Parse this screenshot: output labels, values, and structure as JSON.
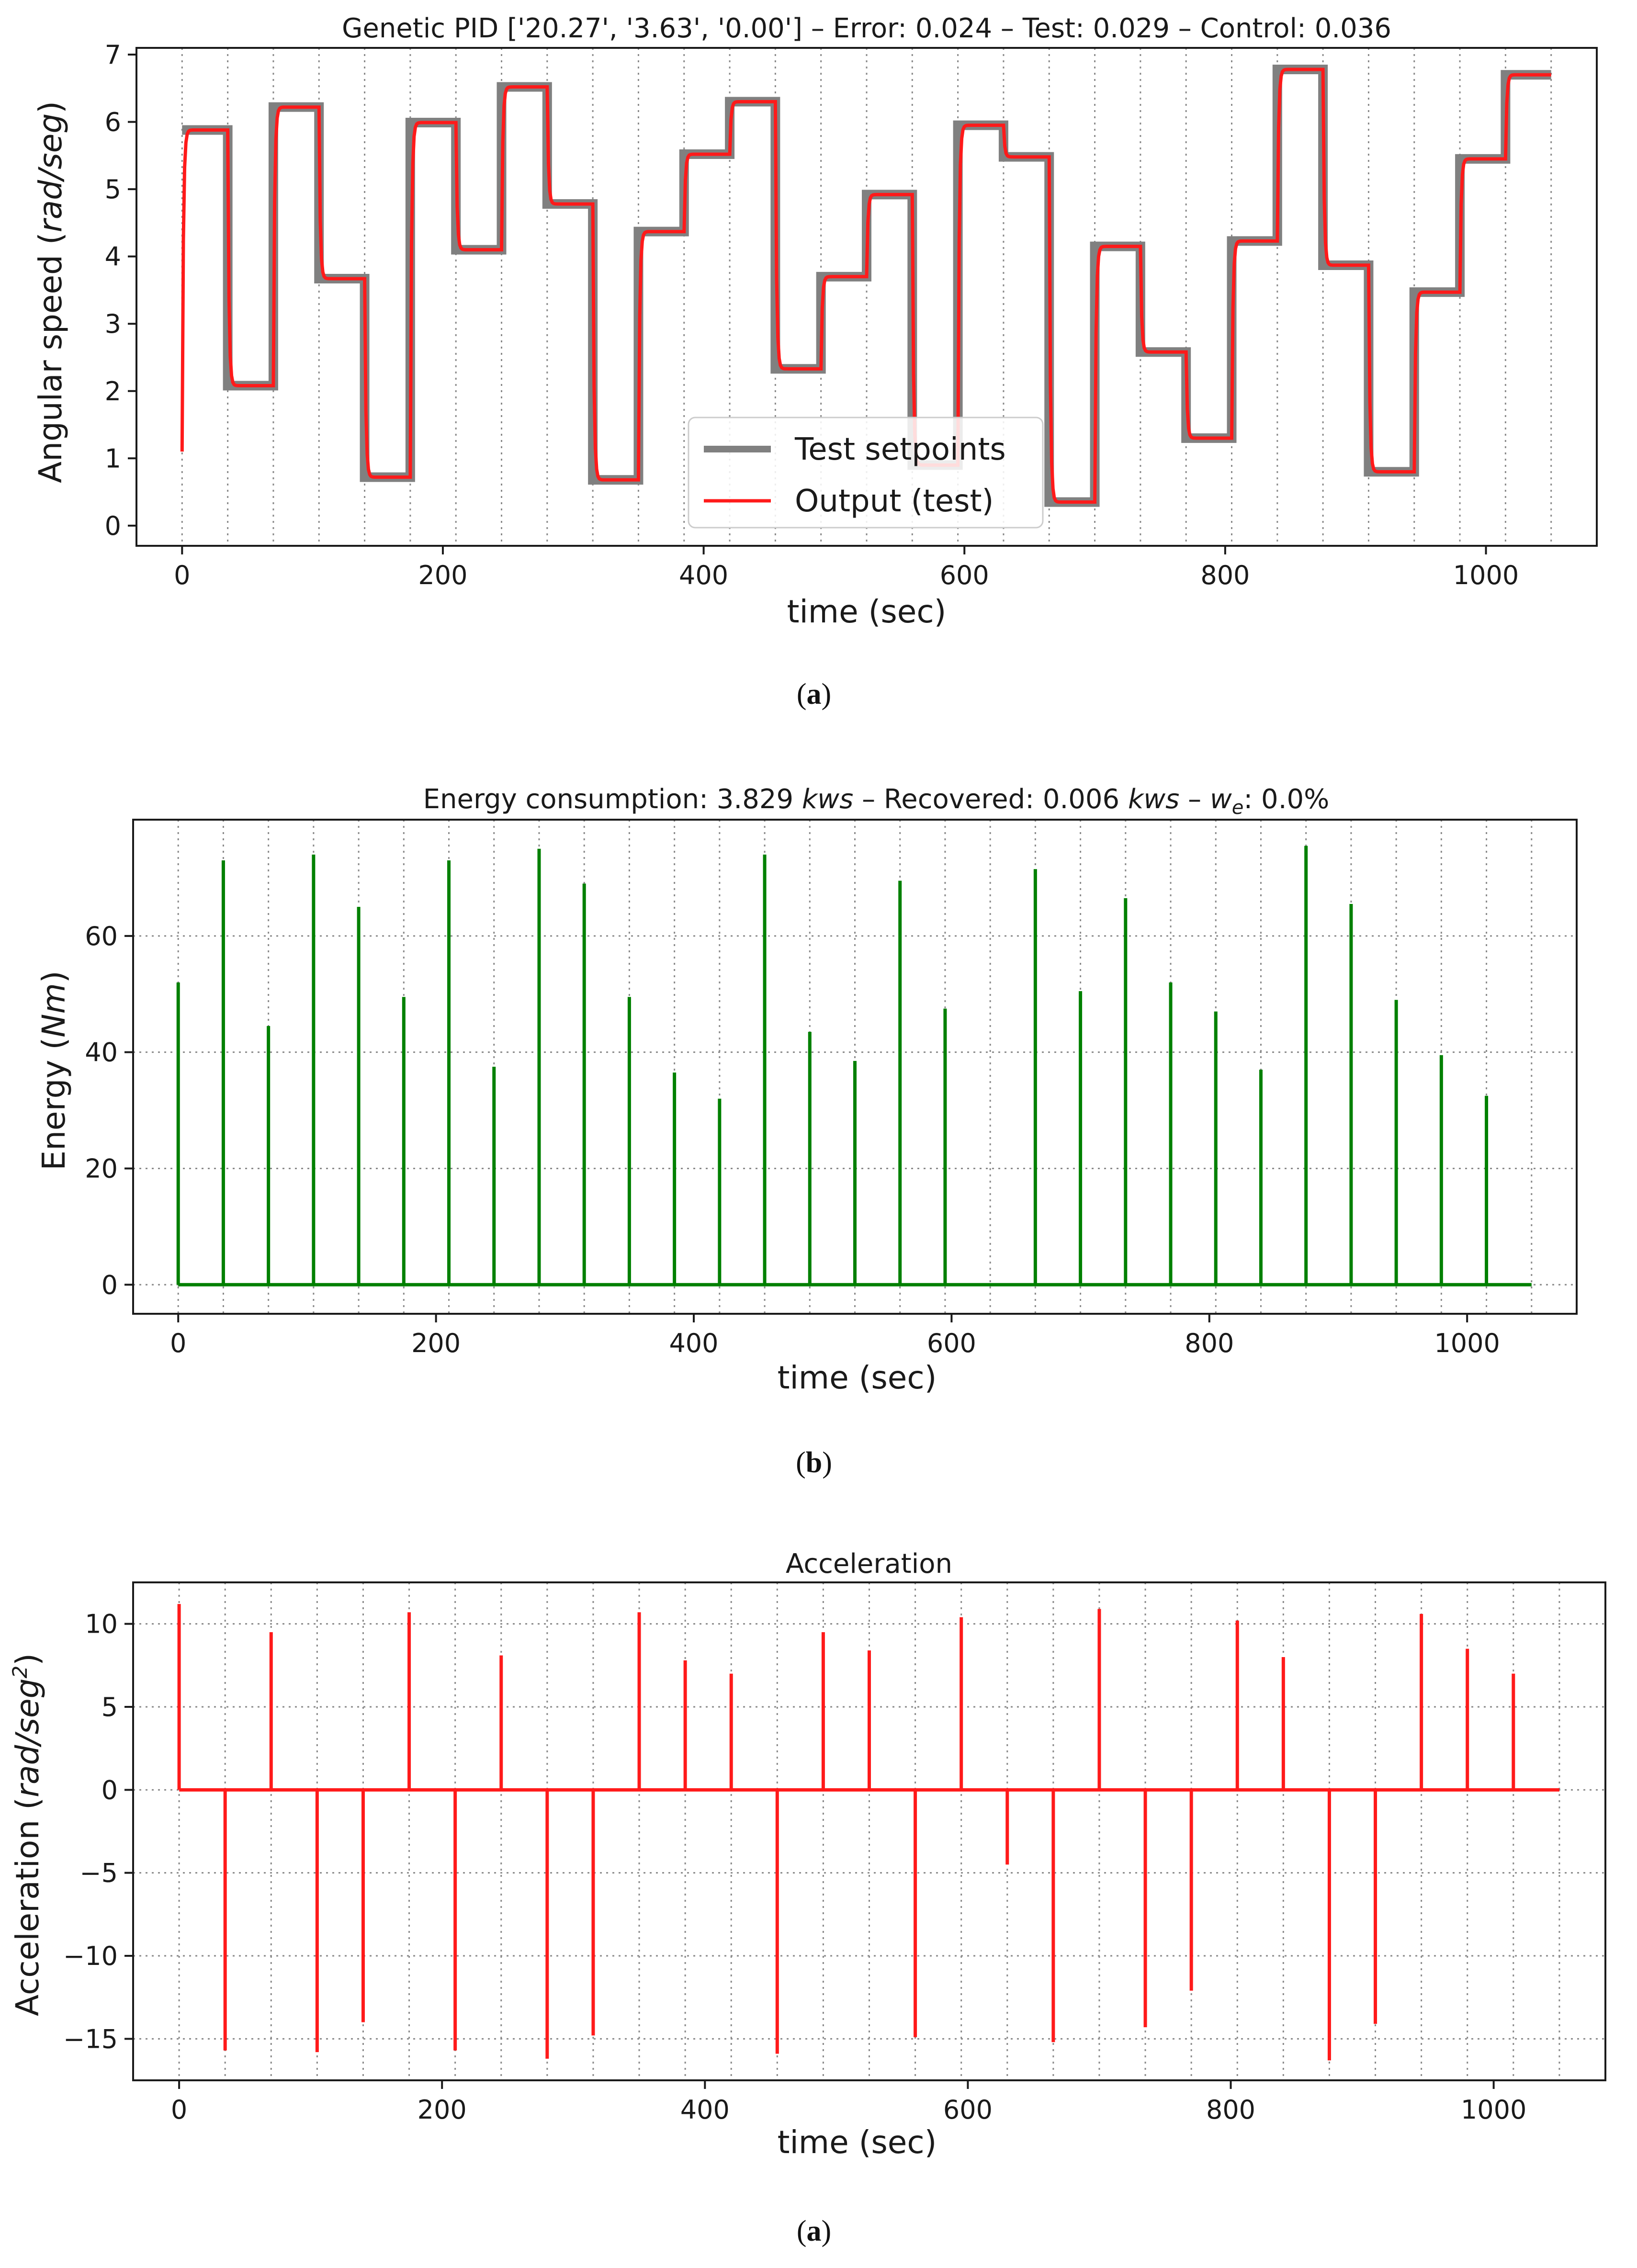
{
  "chart_data": [
    {
      "type": "line",
      "title": "Genetic PID ['20.27', '3.63', '0.00'] – Error: 0.024 – Test: 0.029 – Control: 0.036",
      "xlabel": "time (sec)",
      "ylabel_prefix": "Angular speed (",
      "ylabel_italic": "rad/seg",
      "ylabel_suffix": ")",
      "xlim": [
        -35,
        1085
      ],
      "ylim": [
        -0.3,
        7.1
      ],
      "xticks": [
        0,
        200,
        400,
        600,
        800,
        1000
      ],
      "xtick_labels": [
        "0",
        "200",
        "400",
        "600",
        "800",
        "1000"
      ],
      "yticks": [
        0,
        1,
        2,
        3,
        4,
        5,
        6,
        7
      ],
      "ytick_labels": [
        "0",
        "1",
        "2",
        "3",
        "4",
        "5",
        "6",
        "7"
      ],
      "step_boundaries": [
        0,
        35,
        70,
        105,
        140,
        175,
        210,
        245,
        280,
        315,
        350,
        385,
        420,
        455,
        490,
        525,
        560,
        595,
        630,
        665,
        700,
        735,
        770,
        805,
        840,
        875,
        910,
        945,
        980,
        1015,
        1050
      ],
      "setpoints": [
        5.88,
        2.08,
        6.22,
        3.67,
        0.72,
        5.99,
        4.1,
        6.52,
        4.78,
        0.68,
        4.37,
        5.52,
        6.3,
        2.33,
        3.7,
        4.92,
        0.9,
        5.95,
        5.48,
        0.35,
        4.15,
        2.58,
        1.3,
        4.23,
        6.78,
        3.87,
        0.8,
        3.47,
        5.45,
        6.7
      ],
      "initial_output": 1.1,
      "series": [
        {
          "name": "Test setpoints",
          "color": "#808080"
        },
        {
          "name": "Output (test)",
          "color": "#ff1a1a"
        }
      ],
      "legend": "lower center",
      "grid": "vertical dotted lines at step boundaries",
      "caption": "a"
    },
    {
      "type": "line",
      "title_prefix": "Energy consumption: 3.829 ",
      "title_unit1": "kws",
      "title_mid": " – Recovered: 0.006 ",
      "title_unit2": "kws",
      "title_dash": " – ",
      "title_w": "w",
      "title_w_sub": "e",
      "title_suffix": ": 0.0%",
      "xlabel": "time (sec)",
      "ylabel_prefix": "Energy (",
      "ylabel_italic": "Nm",
      "ylabel_suffix": ")",
      "xlim": [
        -35,
        1085
      ],
      "ylim": [
        -5,
        80
      ],
      "xticks": [
        0,
        200,
        400,
        600,
        800,
        1000
      ],
      "xtick_labels": [
        "0",
        "200",
        "400",
        "600",
        "800",
        "1000"
      ],
      "yticks": [
        0,
        20,
        40,
        60
      ],
      "ytick_labels": [
        "0",
        "20",
        "40",
        "60"
      ],
      "step_boundaries": [
        0,
        35,
        70,
        105,
        140,
        175,
        210,
        245,
        280,
        315,
        350,
        385,
        420,
        455,
        490,
        525,
        560,
        595,
        630,
        665,
        700,
        735,
        770,
        805,
        840,
        875,
        910,
        945,
        980,
        1015,
        1050
      ],
      "spikes": [
        {
          "t": 0,
          "v": 52
        },
        {
          "t": 35,
          "v": 73
        },
        {
          "t": 70,
          "v": 44.5
        },
        {
          "t": 105,
          "v": 74
        },
        {
          "t": 140,
          "v": 65
        },
        {
          "t": 175,
          "v": 49.5
        },
        {
          "t": 210,
          "v": 73
        },
        {
          "t": 245,
          "v": 37.5
        },
        {
          "t": 280,
          "v": 75
        },
        {
          "t": 315,
          "v": 69
        },
        {
          "t": 350,
          "v": 49.5
        },
        {
          "t": 385,
          "v": 36.5
        },
        {
          "t": 420,
          "v": 32
        },
        {
          "t": 455,
          "v": 74
        },
        {
          "t": 490,
          "v": 43.5
        },
        {
          "t": 525,
          "v": 38.5
        },
        {
          "t": 560,
          "v": 69.5
        },
        {
          "t": 595,
          "v": 47.5
        },
        {
          "t": 665,
          "v": 71.5
        },
        {
          "t": 700,
          "v": 50.5
        },
        {
          "t": 735,
          "v": 66.5
        },
        {
          "t": 770,
          "v": 52
        },
        {
          "t": 805,
          "v": 47
        },
        {
          "t": 840,
          "v": 37
        },
        {
          "t": 875,
          "v": 75.5
        },
        {
          "t": 910,
          "v": 65.5
        },
        {
          "t": 945,
          "v": 49
        },
        {
          "t": 980,
          "v": 39.5
        },
        {
          "t": 1015,
          "v": 32.5
        }
      ],
      "series": [
        {
          "name": "Energy",
          "color": "#008000"
        }
      ],
      "grid": "horizontal and vertical dotted lines",
      "caption": "b"
    },
    {
      "type": "line",
      "title": "Acceleration",
      "xlabel": "time (sec)",
      "ylabel_prefix": "Acceleration (",
      "ylabel_italic": "rad/seg",
      "ylabel_sup": "2",
      "ylabel_suffix": ")",
      "xlim": [
        -35,
        1085
      ],
      "ylim": [
        -17.5,
        12.5
      ],
      "xticks": [
        0,
        200,
        400,
        600,
        800,
        1000
      ],
      "xtick_labels": [
        "0",
        "200",
        "400",
        "600",
        "800",
        "1000"
      ],
      "yticks": [
        -15,
        -10,
        -5,
        0,
        5,
        10
      ],
      "ytick_labels": [
        "−15",
        "−10",
        "−5",
        "0",
        "5",
        "10"
      ],
      "step_boundaries": [
        0,
        35,
        70,
        105,
        140,
        175,
        210,
        245,
        280,
        315,
        350,
        385,
        420,
        455,
        490,
        525,
        560,
        595,
        630,
        665,
        700,
        735,
        770,
        805,
        840,
        875,
        910,
        945,
        980,
        1015,
        1050
      ],
      "spikes": [
        {
          "t": 0,
          "v": 11.2
        },
        {
          "t": 35,
          "v": -15.7
        },
        {
          "t": 70,
          "v": 9.5
        },
        {
          "t": 105,
          "v": -15.8
        },
        {
          "t": 140,
          "v": -14
        },
        {
          "t": 175,
          "v": 10.7
        },
        {
          "t": 210,
          "v": -15.7
        },
        {
          "t": 245,
          "v": 8.1
        },
        {
          "t": 280,
          "v": -16.2
        },
        {
          "t": 315,
          "v": -14.8
        },
        {
          "t": 350,
          "v": 10.7
        },
        {
          "t": 385,
          "v": 7.8
        },
        {
          "t": 420,
          "v": 7
        },
        {
          "t": 455,
          "v": -15.9
        },
        {
          "t": 490,
          "v": 9.5
        },
        {
          "t": 525,
          "v": 8.4
        },
        {
          "t": 560,
          "v": -14.9
        },
        {
          "t": 595,
          "v": 10.4
        },
        {
          "t": 630,
          "v": -4.5
        },
        {
          "t": 665,
          "v": -15.2
        },
        {
          "t": 700,
          "v": 10.9
        },
        {
          "t": 735,
          "v": -14.3
        },
        {
          "t": 770,
          "v": -12.1
        },
        {
          "t": 805,
          "v": 10.2
        },
        {
          "t": 840,
          "v": 8
        },
        {
          "t": 875,
          "v": -16.3
        },
        {
          "t": 910,
          "v": -14.1
        },
        {
          "t": 945,
          "v": 10.6
        },
        {
          "t": 980,
          "v": 8.5
        },
        {
          "t": 1015,
          "v": 7
        }
      ],
      "series": [
        {
          "name": "Acceleration",
          "color": "#ff1a1a"
        }
      ],
      "grid": "horizontal and vertical dotted lines",
      "caption": "a"
    }
  ]
}
